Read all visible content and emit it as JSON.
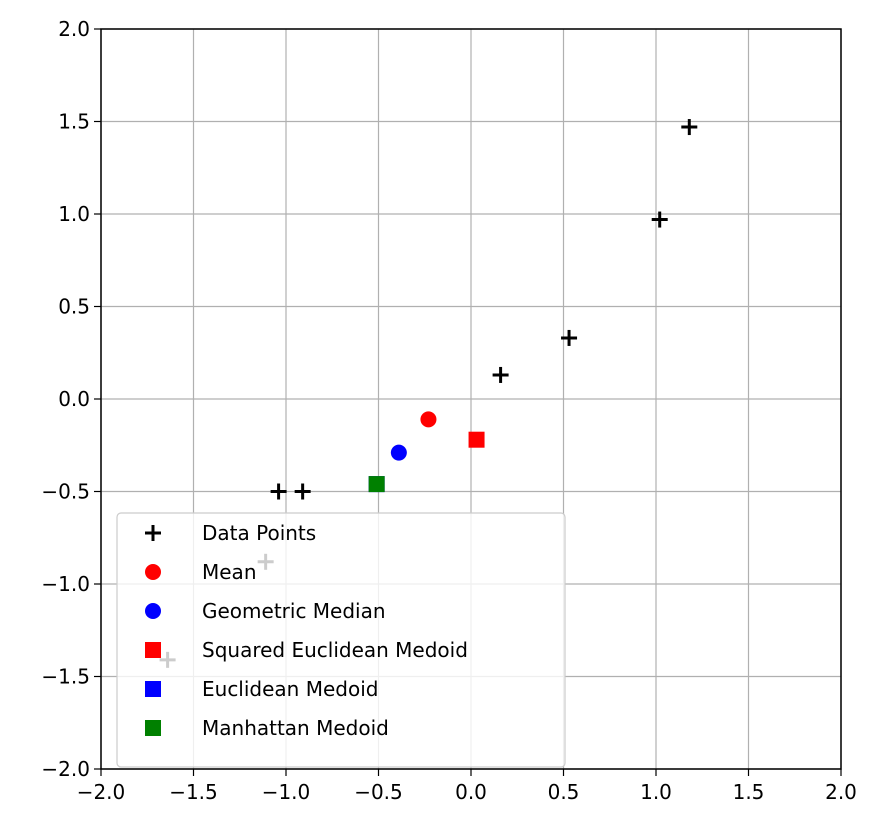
{
  "chart_data": {
    "type": "scatter",
    "title": "",
    "xlabel": "",
    "ylabel": "",
    "xlim": [
      -2.0,
      2.0
    ],
    "ylim": [
      -2.0,
      2.0
    ],
    "xticks": [
      "−2.0",
      "−1.5",
      "−1.0",
      "−0.5",
      "0.0",
      "0.5",
      "1.0",
      "1.5",
      "2.0"
    ],
    "yticks": [
      "−2.0",
      "−1.5",
      "−1.0",
      "−0.5",
      "0.0",
      "0.5",
      "1.0",
      "1.5",
      "2.0"
    ],
    "grid": true,
    "legend_position": "lower-left",
    "series": [
      {
        "name": "Data Points",
        "marker": "plus",
        "color": "#000000",
        "points": [
          {
            "x": 1.18,
            "y": 1.47
          },
          {
            "x": 1.02,
            "y": 0.97
          },
          {
            "x": 0.53,
            "y": 0.33
          },
          {
            "x": 0.16,
            "y": 0.13
          },
          {
            "x": -1.04,
            "y": -0.5
          },
          {
            "x": -0.91,
            "y": -0.5
          },
          {
            "x": -1.11,
            "y": -0.88
          },
          {
            "x": -1.64,
            "y": -1.41
          }
        ]
      },
      {
        "name": "Mean",
        "marker": "circle",
        "color": "#ff0000",
        "points": [
          {
            "x": -0.23,
            "y": -0.11
          }
        ]
      },
      {
        "name": "Geometric Median",
        "marker": "circle",
        "color": "#0000ff",
        "points": [
          {
            "x": -0.39,
            "y": -0.29
          }
        ]
      },
      {
        "name": "Squared Euclidean Medoid",
        "marker": "square",
        "color": "#ff0000",
        "points": [
          {
            "x": 0.03,
            "y": -0.22
          }
        ]
      },
      {
        "name": "Euclidean Medoid",
        "marker": "square",
        "color": "#0000ff",
        "points": [
          {
            "x": -0.51,
            "y": -0.46
          }
        ]
      },
      {
        "name": "Manhattan Medoid",
        "marker": "square",
        "color": "#008000",
        "points": [
          {
            "x": -0.51,
            "y": -0.46
          }
        ]
      }
    ]
  }
}
